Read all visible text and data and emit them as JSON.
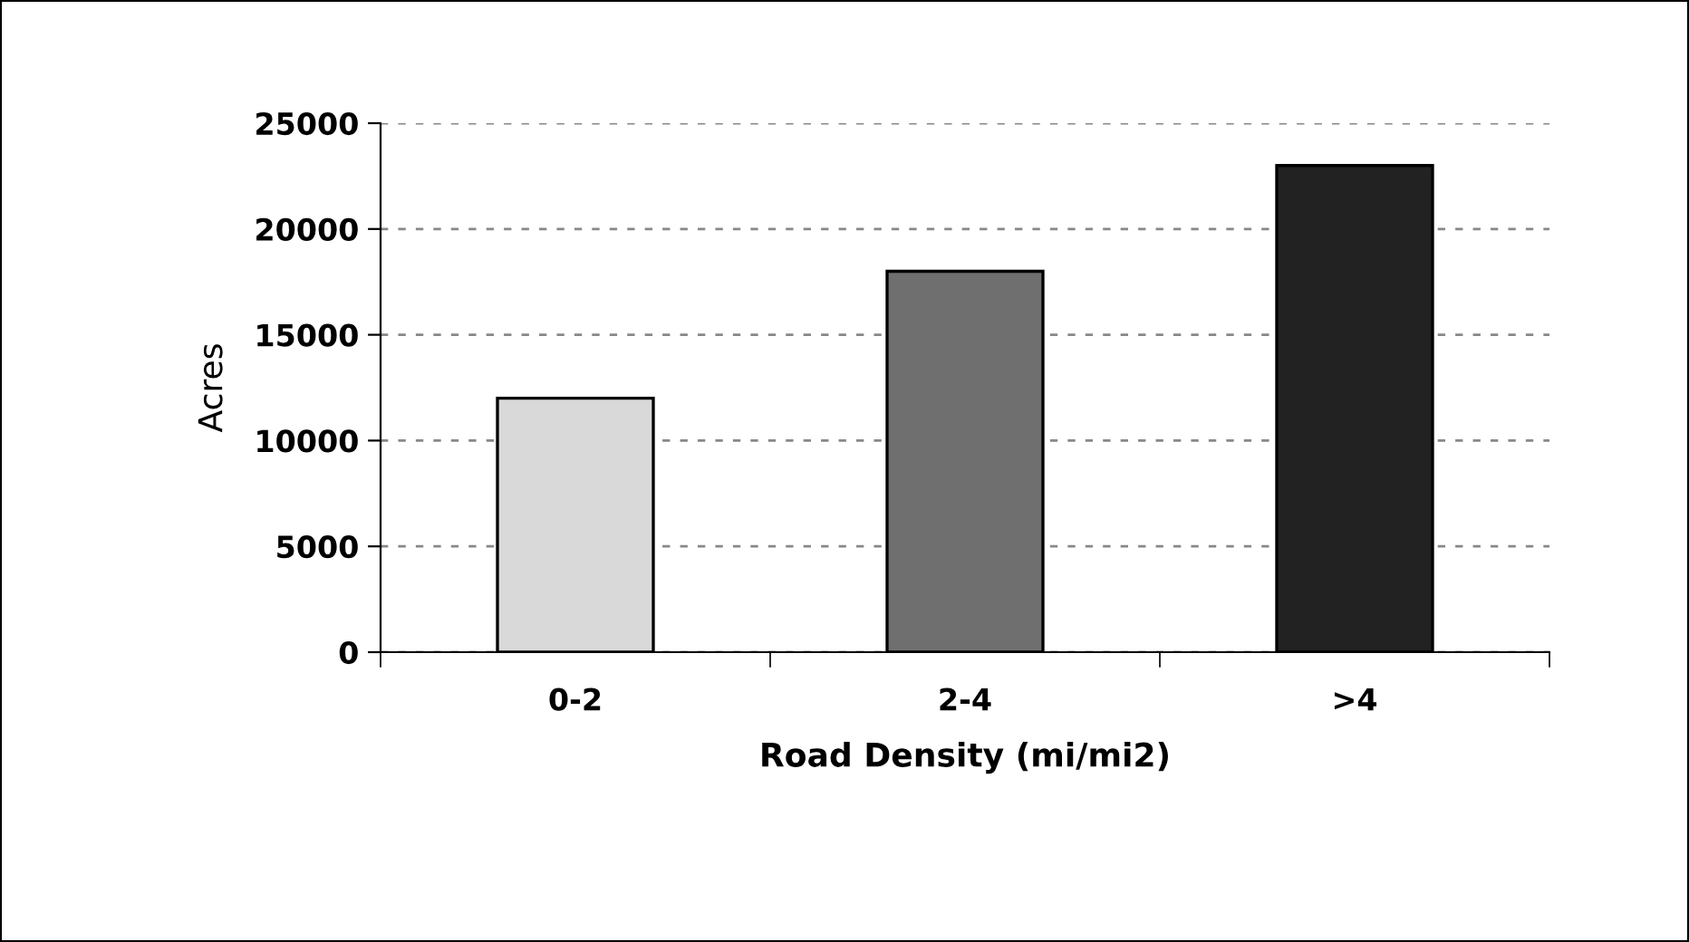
{
  "chart_data": {
    "type": "bar",
    "xlabel": "Road Density (mi/mi2)",
    "ylabel": "Acres",
    "categories": [
      "0-2",
      "2-4",
      ">4"
    ],
    "values": [
      12000,
      18000,
      23000
    ],
    "colors": [
      "#d9d9d9",
      "#6f6f6f",
      "#222222"
    ],
    "ylim": [
      0,
      25000
    ],
    "yticks": [
      0,
      5000,
      10000,
      15000,
      20000,
      25000
    ],
    "grid": "y"
  }
}
